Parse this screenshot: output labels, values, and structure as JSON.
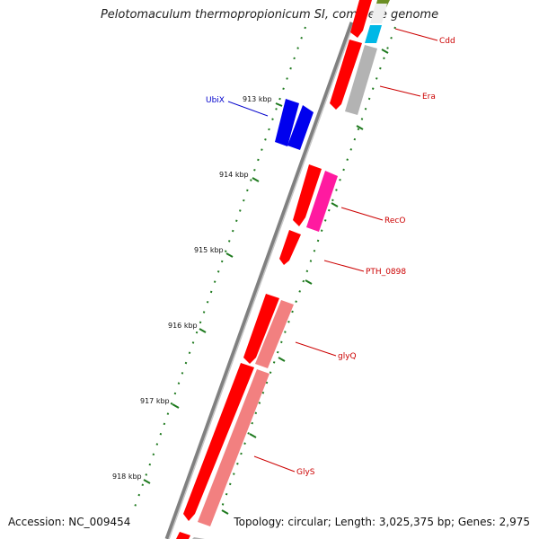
{
  "title": "Pelotomaculum thermopropionicum SI, complete genome",
  "footer": {
    "accession": "Accession: NC_009454",
    "topology": "Topology: circular; Length: 3,025,375 bp; Genes: 2,975"
  },
  "ticks": [
    "913 kbp",
    "914 kbp",
    "915 kbp",
    "916 kbp",
    "917 kbp",
    "918 kbp"
  ],
  "genes": [
    {
      "label": "Cdd",
      "color": "#cc0000",
      "strand": "outer"
    },
    {
      "label": "Era",
      "color": "#cc0000",
      "strand": "outer"
    },
    {
      "label": "UbiX",
      "color": "#0000cc",
      "strand": "inner"
    },
    {
      "label": "RecO",
      "color": "#cc0000",
      "strand": "outer"
    },
    {
      "label": "PTH_0898",
      "color": "#cc0000",
      "strand": "outer"
    },
    {
      "label": "glyQ",
      "color": "#cc0000",
      "strand": "outer"
    },
    {
      "label": "GlyS",
      "color": "#cc0000",
      "strand": "outer"
    }
  ],
  "colors": {
    "backbone": "#808080",
    "tick": "#1f7a1f",
    "gene_red": "#ff0000",
    "gene_blue": "#0000ee",
    "gene_magenta": "#ff1aa0",
    "gene_cyan": "#00b8e6",
    "gene_gray": "#b3b3b3",
    "gene_pink": "#f28080",
    "gene_olive": "#6b8e23"
  }
}
